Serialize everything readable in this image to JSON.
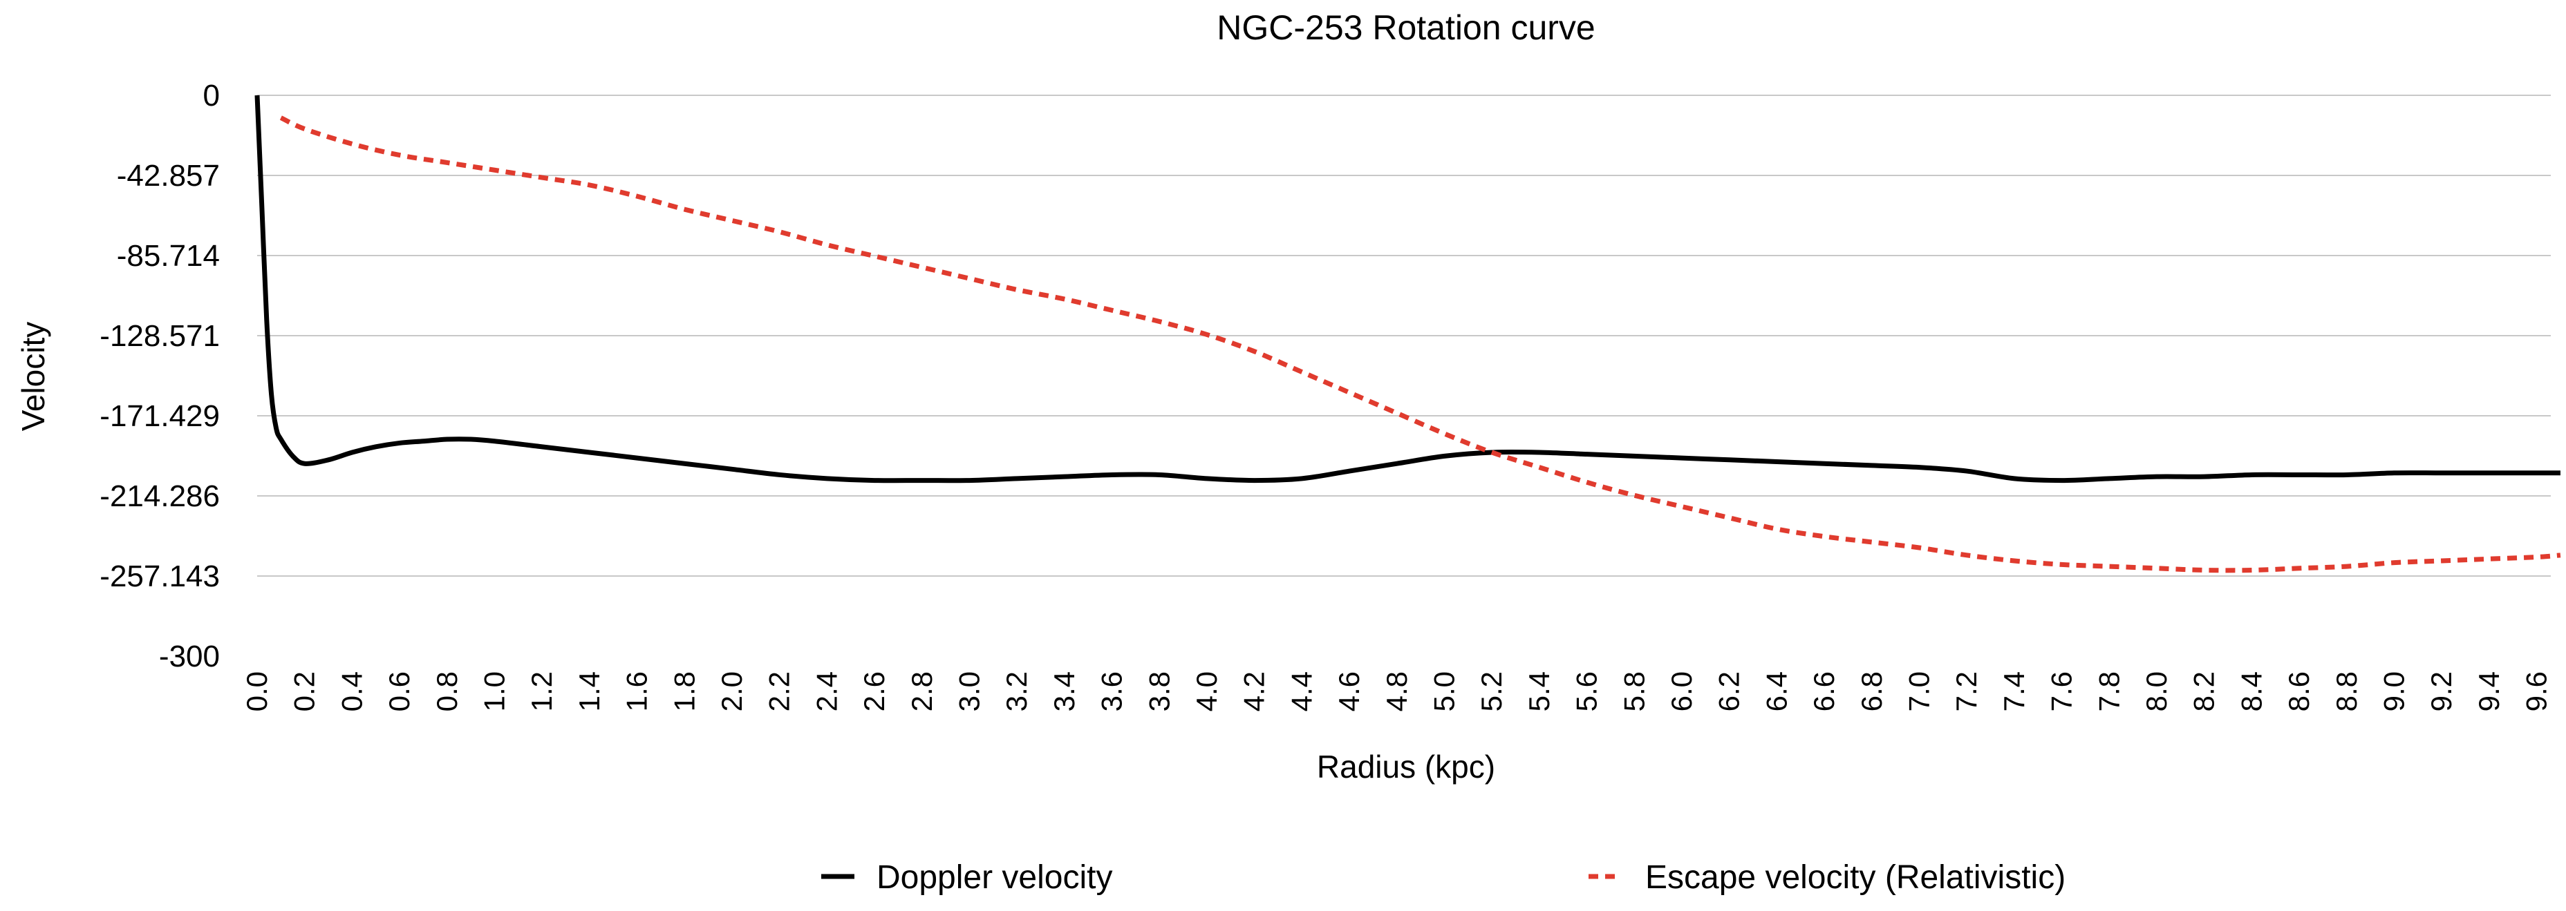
{
  "chart_data": {
    "type": "line",
    "title": "NGC-253 Rotation curve",
    "xlabel": "Radius (kpc)",
    "ylabel": "Velocity",
    "ylim": [
      -300,
      0
    ],
    "xlim": [
      0,
      9.7
    ],
    "grid": true,
    "legend_position": "bottom",
    "y_ticks": [
      "0",
      "-42.857",
      "-85.714",
      "-128.571",
      "-171.429",
      "-214.286",
      "-257.143",
      "-300"
    ],
    "x_ticks": [
      "0.0",
      "0.2",
      "0.4",
      "0.6",
      "0.8",
      "1.0",
      "1.2",
      "1.4",
      "1.6",
      "1.8",
      "2.0",
      "2.2",
      "2.4",
      "2.6",
      "2.8",
      "3.0",
      "3.2",
      "3.4",
      "3.6",
      "3.8",
      "4.0",
      "4.2",
      "4.4",
      "4.6",
      "4.8",
      "5.0",
      "5.2",
      "5.4",
      "5.6",
      "5.8",
      "6.0",
      "6.2",
      "6.4",
      "6.6",
      "6.8",
      "7.0",
      "7.2",
      "7.4",
      "7.6",
      "7.8",
      "8.0",
      "8.2",
      "8.4",
      "8.6",
      "8.8",
      "9.0",
      "9.2",
      "9.4",
      "9.6"
    ],
    "series": [
      {
        "name": "Doppler velocity",
        "color": "#000000",
        "style": "solid",
        "x": [
          0,
          0.02,
          0.04,
          0.06,
          0.08,
          0.1,
          0.15,
          0.2,
          0.3,
          0.4,
          0.5,
          0.6,
          0.7,
          0.8,
          0.9,
          1.0,
          1.2,
          1.4,
          1.6,
          1.8,
          2.0,
          2.2,
          2.4,
          2.6,
          2.8,
          3.0,
          3.2,
          3.4,
          3.6,
          3.8,
          4.0,
          4.2,
          4.4,
          4.6,
          4.8,
          5.0,
          5.2,
          5.4,
          5.6,
          5.8,
          6.0,
          6.2,
          6.4,
          6.6,
          6.8,
          7.0,
          7.2,
          7.4,
          7.6,
          7.8,
          8.0,
          8.2,
          8.4,
          8.6,
          8.8,
          9.0,
          9.2,
          9.4,
          9.6,
          9.7
        ],
        "values": [
          0,
          -60,
          -120,
          -160,
          -178,
          -184,
          -193,
          -197,
          -195,
          -191,
          -188,
          -186,
          -185,
          -184,
          -184,
          -185,
          -188,
          -191,
          -194,
          -197,
          -200,
          -203,
          -205,
          -206,
          -206,
          -206,
          -205,
          -204,
          -203,
          -203,
          -205,
          -206,
          -205,
          -201,
          -197,
          -193,
          -191,
          -191,
          -192,
          -193,
          -194,
          -195,
          -196,
          -197,
          -198,
          -199,
          -201,
          -205,
          -206,
          -205,
          -204,
          -204,
          -203,
          -203,
          -203,
          -202,
          -202,
          -202,
          -202,
          -202
        ]
      },
      {
        "name": "Escape velocity (Relativistic)",
        "color": "#e03b2e",
        "style": "dashed",
        "x": [
          0.1,
          0.2,
          0.4,
          0.6,
          0.8,
          1.0,
          1.2,
          1.4,
          1.6,
          1.8,
          2.0,
          2.2,
          2.4,
          2.6,
          2.8,
          3.0,
          3.2,
          3.4,
          3.6,
          3.8,
          4.0,
          4.2,
          4.4,
          4.6,
          4.8,
          5.0,
          5.2,
          5.4,
          5.6,
          5.8,
          6.0,
          6.2,
          6.4,
          6.6,
          6.8,
          7.0,
          7.2,
          7.4,
          7.6,
          7.8,
          8.0,
          8.2,
          8.4,
          8.6,
          8.8,
          9.0,
          9.2,
          9.4,
          9.6,
          9.7
        ],
        "values": [
          -12,
          -18,
          -26,
          -32,
          -36,
          -40,
          -44,
          -48,
          -54,
          -61,
          -67,
          -73,
          -80,
          -86,
          -92,
          -98,
          -104,
          -109,
          -115,
          -121,
          -128,
          -137,
          -148,
          -159,
          -170,
          -181,
          -191,
          -199,
          -207,
          -214,
          -220,
          -226,
          -232,
          -236,
          -239,
          -242,
          -246,
          -249,
          -251,
          -252,
          -253,
          -254,
          -254,
          -253,
          -252,
          -250,
          -249,
          -248,
          -247,
          -246
        ]
      }
    ]
  }
}
